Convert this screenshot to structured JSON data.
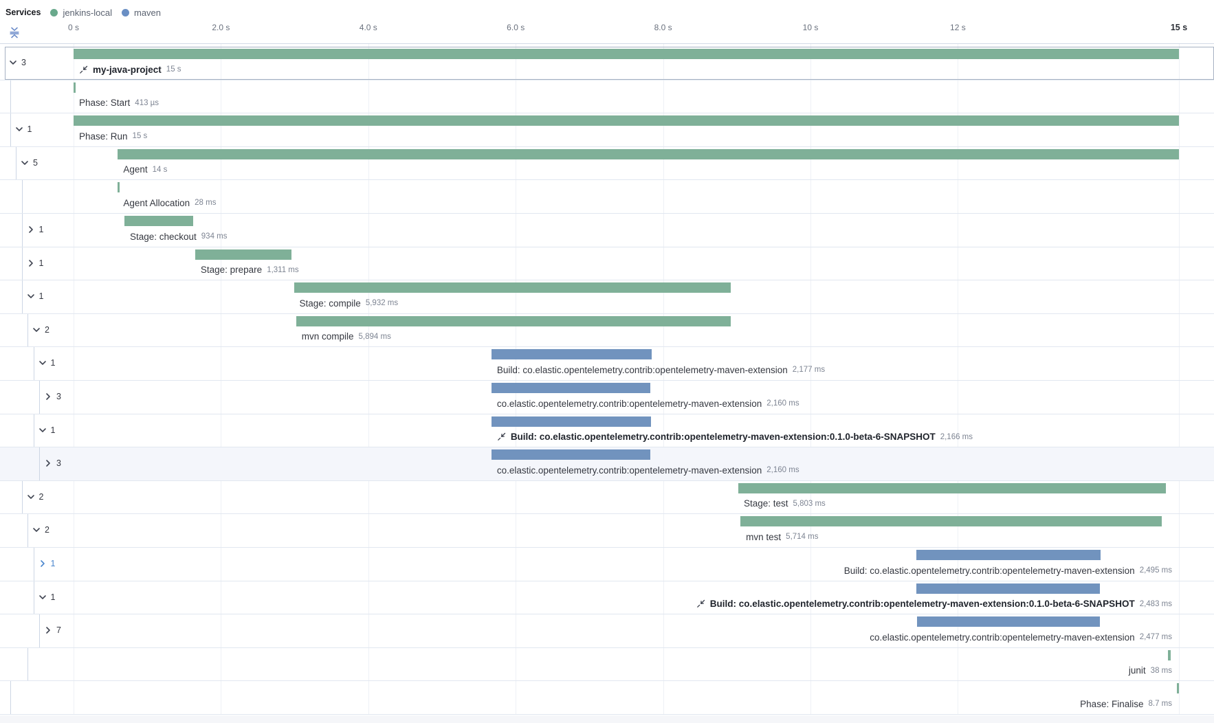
{
  "legend": {
    "title": "Services",
    "items": [
      {
        "name": "jenkins-local",
        "color": "#69a98c"
      },
      {
        "name": "maven",
        "color": "#6a8fc4"
      }
    ]
  },
  "colors": {
    "jenkins_bar": "#7fb098",
    "maven_bar": "#7193be",
    "focus_blue": "#4a86cd",
    "chevron": "#404552",
    "fold_icon": "#6c8cc9"
  },
  "timeline": {
    "max_seconds": 15,
    "ticks": [
      {
        "t": 0,
        "label": "0 s"
      },
      {
        "t": 2,
        "label": "2.0 s"
      },
      {
        "t": 4,
        "label": "4.0 s"
      },
      {
        "t": 6,
        "label": "6.0 s"
      },
      {
        "t": 8,
        "label": "8.0 s"
      },
      {
        "t": 10,
        "label": "10 s"
      },
      {
        "t": 12,
        "label": "12 s"
      },
      {
        "t": 15,
        "label": "15 s",
        "strong": true
      }
    ]
  },
  "rows": [
    {
      "label": "my-java-project",
      "duration": "15 s",
      "service": "jenkins-local",
      "start_s": 0,
      "dur_s": 15,
      "depth": 0,
      "chevron": "down",
      "count": "3",
      "bold": true,
      "link_icon": true,
      "boxed": true
    },
    {
      "label": "Phase: Start",
      "duration": "413 µs",
      "service": "jenkins-local",
      "start_s": 0,
      "dur_s": 0.000413,
      "depth": 1,
      "chevron": "none"
    },
    {
      "label": "Phase: Run",
      "duration": "15 s",
      "service": "jenkins-local",
      "start_s": 0,
      "dur_s": 15,
      "depth": 1,
      "chevron": "down",
      "count": "1"
    },
    {
      "label": "Agent",
      "duration": "14 s",
      "service": "jenkins-local",
      "start_s": 0.6,
      "dur_s": 14.4,
      "depth": 2,
      "chevron": "down",
      "count": "5"
    },
    {
      "label": "Agent Allocation",
      "duration": "28 ms",
      "service": "jenkins-local",
      "start_s": 0.6,
      "dur_s": 0.028,
      "depth": 3,
      "chevron": "none"
    },
    {
      "label": "Stage: checkout",
      "duration": "934 ms",
      "service": "jenkins-local",
      "start_s": 0.69,
      "dur_s": 0.934,
      "depth": 3,
      "chevron": "right",
      "count": "1"
    },
    {
      "label": "Stage: prepare",
      "duration": "1,311 ms",
      "service": "jenkins-local",
      "start_s": 1.65,
      "dur_s": 1.311,
      "depth": 3,
      "chevron": "right",
      "count": "1"
    },
    {
      "label": "Stage: compile",
      "duration": "5,932 ms",
      "service": "jenkins-local",
      "start_s": 2.99,
      "dur_s": 5.932,
      "depth": 3,
      "chevron": "down",
      "count": "1"
    },
    {
      "label": "mvn compile",
      "duration": "5,894 ms",
      "service": "jenkins-local",
      "start_s": 3.02,
      "dur_s": 5.894,
      "depth": 4,
      "chevron": "down",
      "count": "2"
    },
    {
      "label": "Build: co.elastic.opentelemetry.contrib:opentelemetry-maven-extension",
      "duration": "2,177 ms",
      "service": "maven",
      "start_s": 5.67,
      "dur_s": 2.177,
      "depth": 5,
      "chevron": "down",
      "count": "1"
    },
    {
      "label": "co.elastic.opentelemetry.contrib:opentelemetry-maven-extension",
      "duration": "2,160 ms",
      "service": "maven",
      "start_s": 5.67,
      "dur_s": 2.16,
      "depth": 6,
      "chevron": "right",
      "count": "3"
    },
    {
      "label": "Build: co.elastic.opentelemetry.contrib:opentelemetry-maven-extension:0.1.0-beta-6-SNAPSHOT",
      "duration": "2,166 ms",
      "service": "maven",
      "start_s": 5.67,
      "dur_s": 2.166,
      "depth": 5,
      "chevron": "down",
      "count": "1",
      "bold": true,
      "link_icon": true
    },
    {
      "label": "co.elastic.opentelemetry.contrib:opentelemetry-maven-extension",
      "duration": "2,160 ms",
      "service": "maven",
      "start_s": 5.67,
      "dur_s": 2.16,
      "depth": 6,
      "chevron": "right",
      "count": "3",
      "highlighted": true
    },
    {
      "label": "Stage: test",
      "duration": "5,803 ms",
      "service": "jenkins-local",
      "start_s": 9.02,
      "dur_s": 5.803,
      "depth": 3,
      "chevron": "down",
      "count": "2"
    },
    {
      "label": "mvn test",
      "duration": "5,714 ms",
      "service": "jenkins-local",
      "start_s": 9.05,
      "dur_s": 5.714,
      "depth": 4,
      "chevron": "down",
      "count": "2"
    },
    {
      "label": "Build: co.elastic.opentelemetry.contrib:opentelemetry-maven-extension",
      "duration": "2,495 ms",
      "service": "maven",
      "start_s": 11.44,
      "dur_s": 2.495,
      "depth": 5,
      "chevron": "right",
      "count": "1",
      "focus": true,
      "align": "end"
    },
    {
      "label": "Build: co.elastic.opentelemetry.contrib:opentelemetry-maven-extension:0.1.0-beta-6-SNAPSHOT",
      "duration": "2,483 ms",
      "service": "maven",
      "start_s": 11.44,
      "dur_s": 2.483,
      "depth": 5,
      "chevron": "down",
      "count": "1",
      "bold": true,
      "link_icon": true,
      "align": "end"
    },
    {
      "label": "co.elastic.opentelemetry.contrib:opentelemetry-maven-extension",
      "duration": "2,477 ms",
      "service": "maven",
      "start_s": 11.45,
      "dur_s": 2.477,
      "depth": 6,
      "chevron": "right",
      "count": "7",
      "align": "end"
    },
    {
      "label": "junit",
      "duration": "38 ms",
      "service": "jenkins-local",
      "start_s": 14.85,
      "dur_s": 0.038,
      "depth": 4,
      "chevron": "none",
      "align": "end"
    },
    {
      "label": "Phase: Finalise",
      "duration": "8.7 ms",
      "service": "jenkins-local",
      "start_s": 14.97,
      "dur_s": 0.0087,
      "depth": 1,
      "chevron": "none",
      "align": "end"
    }
  ]
}
